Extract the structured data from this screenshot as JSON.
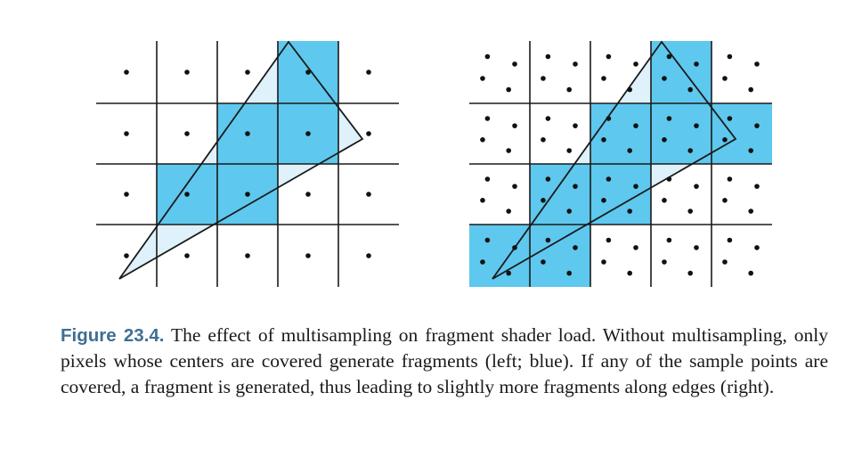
{
  "colors": {
    "covered_fill": "#5ec8ee",
    "triangle_fill": "#d9effa",
    "grid_line": "#1a1a1a",
    "sample_dot": "#111111",
    "caption_label": "#3f6f93"
  },
  "left_panel": {
    "rows": 4,
    "cols": 5,
    "covered_cells": [
      [
        0,
        3
      ],
      [
        1,
        2
      ],
      [
        1,
        3
      ],
      [
        2,
        1
      ],
      [
        2,
        2
      ]
    ],
    "sampling": "center"
  },
  "right_panel": {
    "rows": 4,
    "cols": 5,
    "covered_cells": [
      [
        0,
        3
      ],
      [
        1,
        2
      ],
      [
        1,
        3
      ],
      [
        1,
        4
      ],
      [
        2,
        1
      ],
      [
        2,
        2
      ],
      [
        3,
        0
      ],
      [
        3,
        1
      ]
    ],
    "sampling": "four-sample pattern"
  },
  "caption": {
    "label": "Figure 23.4.",
    "text": " The effect of multisampling on fragment shader load. Without multisampling, only pixels whose centers are covered generate fragments (left; blue).  If any of the sample points are covered, a fragment is generated, thus leading to slightly more fragments along edges (right)."
  }
}
